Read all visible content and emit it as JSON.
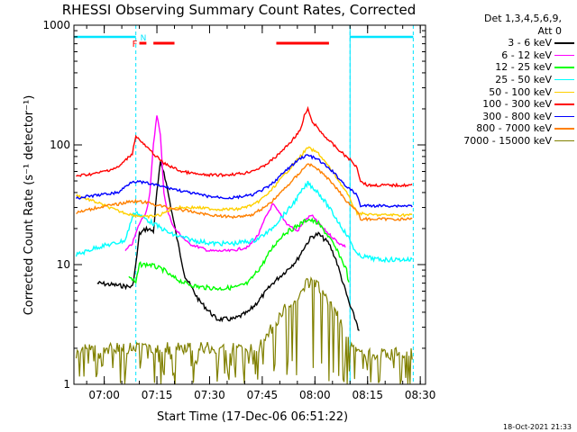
{
  "chart_data": {
    "type": "line",
    "title": "RHESSI Observing Summary Count Rates, Corrected",
    "xlabel": "Start Time (17-Dec-06 06:51:22)",
    "ylabel": "Corrected Count Rate (s⁻¹ detector⁻¹)",
    "yscale": "log",
    "ylim": [
      1,
      1000
    ],
    "xlim": [
      "06:51:22",
      "08:31:30"
    ],
    "x_ticks": [
      "07:00",
      "07:15",
      "07:30",
      "07:45",
      "08:00",
      "08:15",
      "08:30"
    ],
    "y_ticks": [
      "1",
      "10",
      "100",
      "1000"
    ],
    "legend_title": [
      "Det 1,3,4,5,6,9,",
      "Att 0"
    ],
    "legend_position": "right",
    "grid": false,
    "series": [
      {
        "name": "3 - 6 keV",
        "color": "#000000",
        "x": [
          "06:58",
          "07:08",
          "07:09",
          "07:10",
          "07:12",
          "07:14",
          "07:15",
          "07:16",
          "07:17",
          "07:19",
          "07:21",
          "07:23",
          "07:27",
          "07:32",
          "07:37",
          "07:41",
          "07:44",
          "07:48",
          "07:52",
          "07:55",
          "07:57",
          "07:59",
          "08:01",
          "08:04",
          "08:06",
          "08:08",
          "08:10",
          "08:12",
          "08:13"
        ],
        "y": [
          7,
          6.5,
          10,
          18,
          20,
          19,
          40,
          70,
          60,
          30,
          15,
          8,
          5,
          3.5,
          3.5,
          4,
          5,
          7,
          9,
          11,
          14,
          17,
          18,
          15,
          11,
          7,
          4.5,
          3.2,
          2.5
        ]
      },
      {
        "name": "6 - 12 keV",
        "color": "#ff00ff",
        "x": [
          "07:06",
          "07:08",
          "07:10",
          "07:12",
          "07:13",
          "07:14",
          "07:15",
          "07:16",
          "07:17",
          "07:18",
          "07:20",
          "07:24",
          "07:30",
          "07:36",
          "07:41",
          "07:44",
          "07:46",
          "07:48",
          "07:52",
          "07:55",
          "07:57",
          "07:59",
          "08:01",
          "08:04",
          "08:07",
          "08:09"
        ],
        "y": [
          13,
          15,
          22,
          28,
          40,
          100,
          180,
          120,
          40,
          28,
          20,
          15,
          13,
          13,
          14,
          18,
          25,
          32,
          22,
          19,
          23,
          26,
          22,
          18,
          15,
          14
        ]
      },
      {
        "name": "12 - 25 keV",
        "color": "#00ff00",
        "x": [
          "07:07",
          "07:09",
          "07:10",
          "07:13",
          "07:17",
          "07:19",
          "07:23",
          "07:27",
          "07:33",
          "07:38",
          "07:41",
          "07:45",
          "07:48",
          "07:51",
          "07:55",
          "07:58",
          "08:01",
          "08:04",
          "08:07",
          "08:09",
          "08:10"
        ],
        "y": [
          8,
          7,
          10,
          10,
          9,
          8,
          7,
          6.5,
          6.3,
          6.5,
          7,
          10,
          14,
          18,
          21,
          24,
          22,
          17,
          12,
          9,
          6
        ]
      },
      {
        "name": "25 - 50 keV",
        "color": "#00ffff",
        "x": [
          "06:52",
          "06:58",
          "07:03",
          "07:06",
          "07:08",
          "07:09",
          "07:10",
          "07:14",
          "07:19",
          "07:25",
          "07:31",
          "07:37",
          "07:43",
          "07:47",
          "07:50",
          "07:53",
          "07:56",
          "07:58",
          "08:01",
          "08:04",
          "08:07",
          "08:10",
          "08:12",
          "08:18",
          "08:24",
          "08:28"
        ],
        "y": [
          12,
          14,
          15,
          16,
          25,
          28,
          26,
          22,
          18,
          16,
          15,
          15,
          16,
          19,
          24,
          30,
          40,
          48,
          40,
          30,
          22,
          16,
          12,
          11,
          11,
          11
        ]
      },
      {
        "name": "50 - 100 keV",
        "color": "#ffd000",
        "x": [
          "06:52",
          "06:58",
          "07:04",
          "07:08",
          "07:12",
          "07:16",
          "07:20",
          "07:26",
          "07:32",
          "07:38",
          "07:43",
          "07:47",
          "07:51",
          "07:55",
          "07:58",
          "08:01",
          "08:05",
          "08:09",
          "08:12",
          "08:16",
          "08:22",
          "08:28"
        ],
        "y": [
          38,
          33,
          28,
          26,
          25,
          26,
          30,
          30,
          29,
          29,
          32,
          40,
          55,
          75,
          95,
          85,
          60,
          40,
          27,
          26,
          26,
          26
        ]
      },
      {
        "name": "100 - 300 keV",
        "color": "#ff0000",
        "x": [
          "06:52",
          "06:58",
          "07:04",
          "07:08",
          "07:09",
          "07:10",
          "07:13",
          "07:17",
          "07:22",
          "07:28",
          "07:34",
          "07:40",
          "07:45",
          "07:49",
          "07:53",
          "07:56",
          "07:57",
          "07:58",
          "07:59",
          "08:02",
          "08:06",
          "08:10",
          "08:12",
          "08:13",
          "08:15",
          "08:22",
          "08:28"
        ],
        "y": [
          55,
          58,
          65,
          85,
          120,
          110,
          90,
          70,
          60,
          56,
          56,
          58,
          65,
          80,
          105,
          135,
          175,
          200,
          160,
          125,
          95,
          75,
          65,
          50,
          46,
          46,
          46
        ]
      },
      {
        "name": "300 - 800 keV",
        "color": "#0000ff",
        "x": [
          "06:52",
          "06:58",
          "07:04",
          "07:08",
          "07:12",
          "07:18",
          "07:24",
          "07:30",
          "07:36",
          "07:42",
          "07:47",
          "07:52",
          "07:56",
          "07:58",
          "08:01",
          "08:05",
          "08:09",
          "08:12",
          "08:13",
          "08:18",
          "08:24",
          "08:28"
        ],
        "y": [
          36,
          38,
          40,
          50,
          48,
          44,
          40,
          37,
          36,
          38,
          45,
          62,
          78,
          82,
          75,
          60,
          45,
          38,
          31,
          31,
          31,
          31
        ]
      },
      {
        "name": "800 - 7000 keV",
        "color": "#ff8000",
        "x": [
          "06:52",
          "06:58",
          "07:04",
          "07:08",
          "07:12",
          "07:18",
          "07:24",
          "07:30",
          "07:36",
          "07:42",
          "07:47",
          "07:52",
          "07:56",
          "07:58",
          "08:01",
          "08:05",
          "08:09",
          "08:12",
          "08:13",
          "08:18",
          "08:24",
          "08:28"
        ],
        "y": [
          27,
          30,
          32,
          34,
          33,
          30,
          28,
          26,
          25,
          26,
          32,
          45,
          60,
          70,
          62,
          48,
          34,
          28,
          24,
          24,
          24,
          24
        ]
      },
      {
        "name": "7000 - 15000 keV",
        "color": "#808000",
        "x": [
          "06:52",
          "06:58",
          "07:04",
          "07:08",
          "07:14",
          "07:22",
          "07:30",
          "07:38",
          "07:44",
          "07:48",
          "07:52",
          "07:56",
          "07:58",
          "08:01",
          "08:04",
          "08:08",
          "08:11",
          "08:14",
          "08:20",
          "08:28"
        ],
        "y": [
          2,
          2,
          2,
          2,
          2,
          2,
          2,
          2,
          2,
          3,
          4.5,
          6,
          7,
          6.5,
          5,
          3,
          2,
          1.8,
          1.8,
          1.8
        ]
      }
    ],
    "annotations": {
      "flare_flag_label": "F",
      "night_flag_label": "N",
      "flare_intervals": [
        [
          "07:10",
          "07:12"
        ],
        [
          "07:14",
          "07:20"
        ],
        [
          "07:49",
          "08:04"
        ]
      ],
      "saa_night_intervals": [
        [
          "06:51:22",
          "07:09"
        ],
        [
          "08:10",
          "08:28"
        ]
      ],
      "attenuator_boundaries": [
        "07:09",
        "08:10",
        "08:28"
      ]
    }
  },
  "legend": {
    "title_line1": "Det 1,3,4,5,6,9,",
    "title_line2": "Att 0"
  },
  "timestamp": "18-Oct-2021 21:33"
}
